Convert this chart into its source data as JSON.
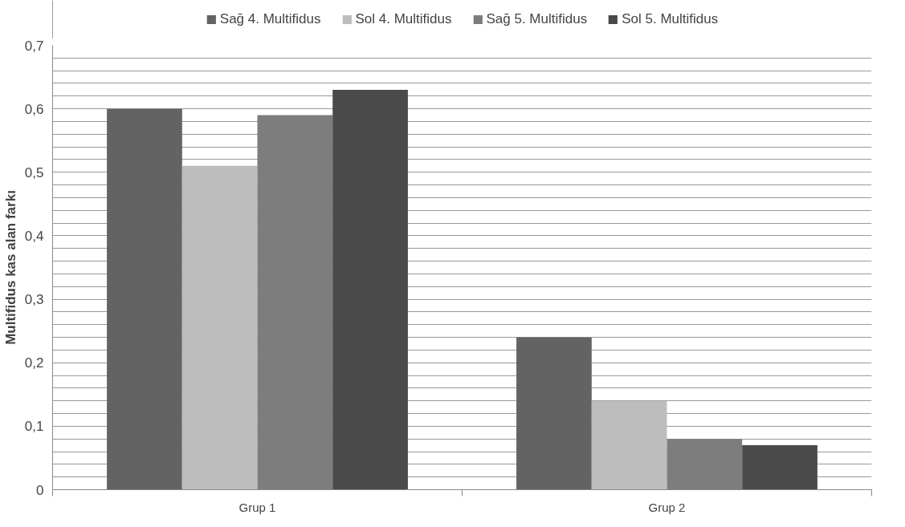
{
  "chart_data": {
    "type": "bar",
    "ylabel": "Multifidus kas alan farkı",
    "categories": [
      "Grup 1",
      "Grup 2"
    ],
    "series": [
      {
        "name": "Sağ 4. Multifidus",
        "color": "#636363",
        "values": [
          0.6,
          0.24
        ]
      },
      {
        "name": "Sol 4. Multifidus",
        "color": "#bdbdbd",
        "values": [
          0.51,
          0.14
        ]
      },
      {
        "name": "Sağ 5. Multifidus",
        "color": "#7d7d7d",
        "values": [
          0.59,
          0.08
        ]
      },
      {
        "name": "Sol 5. Multifidus",
        "color": "#4a4a4a",
        "values": [
          0.63,
          0.07
        ]
      }
    ],
    "ylim": [
      0,
      0.7
    ],
    "yticks": [
      0,
      {
        "value": 0.02,
        "label": null
      },
      {
        "value": 0.04,
        "label": null
      },
      {
        "value": 0.06,
        "label": null
      },
      {
        "value": 0.08,
        "label": null
      },
      {
        "value": 0.1,
        "label": "0,1"
      },
      {
        "value": 0.12,
        "label": null
      },
      {
        "value": 0.14,
        "label": null
      },
      {
        "value": 0.16,
        "label": null
      },
      {
        "value": 0.18,
        "label": null
      },
      {
        "value": 0.2,
        "label": "0,2"
      },
      {
        "value": 0.22,
        "label": null
      },
      {
        "value": 0.24,
        "label": null
      },
      {
        "value": 0.26,
        "label": null
      },
      {
        "value": 0.28,
        "label": null
      },
      {
        "value": 0.3,
        "label": "0,3"
      },
      {
        "value": 0.32,
        "label": null
      },
      {
        "value": 0.34,
        "label": null
      },
      {
        "value": 0.36,
        "label": null
      },
      {
        "value": 0.38,
        "label": null
      },
      {
        "value": 0.4,
        "label": "0,4"
      },
      {
        "value": 0.42,
        "label": null
      },
      {
        "value": 0.44,
        "label": null
      },
      {
        "value": 0.46,
        "label": null
      },
      {
        "value": 0.48,
        "label": null
      },
      {
        "value": 0.5,
        "label": "0,5"
      },
      {
        "value": 0.52,
        "label": null
      },
      {
        "value": 0.54,
        "label": null
      },
      {
        "value": 0.56,
        "label": null
      },
      {
        "value": 0.58,
        "label": null
      },
      {
        "value": 0.6,
        "label": "0,6"
      },
      {
        "value": 0.62,
        "label": null
      },
      {
        "value": 0.64,
        "label": null
      },
      {
        "value": 0.66,
        "label": null
      },
      {
        "value": 0.68,
        "label": null
      },
      {
        "value": 0.7,
        "label": "0,7"
      }
    ],
    "grid": "y",
    "legend": "top"
  }
}
